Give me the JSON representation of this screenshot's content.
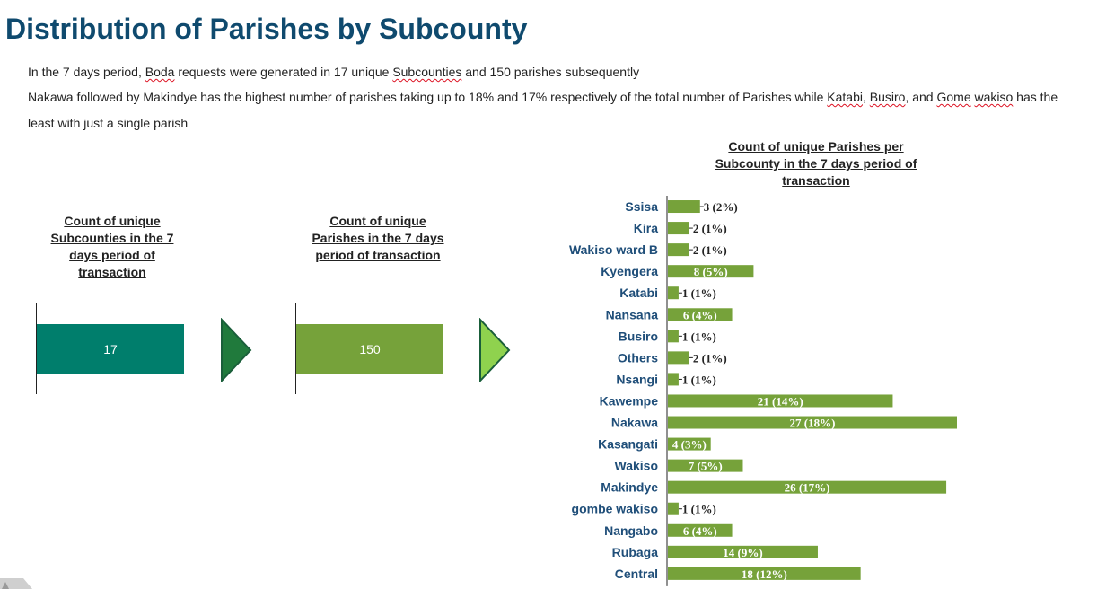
{
  "page": {
    "title": "Distribution of Parishes by Subcounty",
    "line1_prefix": "In the 7 days period,  ",
    "line1_boda": "Boda",
    "line1_mid": " requests were generated in 17 unique ",
    "line1_sub": "Subcounties",
    "line1_suffix": " and 150 parishes subsequently",
    "line2_a": "Nakawa followed by Makindye has the highest number of parishes taking up to 18% and 17% respectively of the total number of Parishes while ",
    "line2_katabi": "Katabi",
    "line2_sep1": ", ",
    "line2_busiro": "Busiro",
    "line2_sep2": ", and ",
    "line2_gome": "Gome",
    "line2_sp": " ",
    "line2_wakiso": "wakiso",
    "line2_b": " has the",
    "line3": "least with just a single parish"
  },
  "stats": {
    "subcounties": {
      "label_lines": [
        "Count of unique",
        "Subcounties in the 7",
        "days period of",
        "transaction"
      ],
      "value": "17",
      "color": "#007e6c"
    },
    "parishes": {
      "label_lines": [
        "Count of unique",
        "Parishes in the 7 days",
        "period of transaction"
      ],
      "value": "150",
      "color": "#76a23a"
    },
    "arrow1_color": "#207a3c",
    "arrow2_color": "#8fd24e",
    "arrow_stroke": "#1a5e3a"
  },
  "chart_data": {
    "type": "bar",
    "orientation": "horizontal",
    "title_lines": [
      "Count of unique Parishes per",
      "Subcounty in the 7 days period of",
      "transaction"
    ],
    "categories": [
      "Ssisa",
      "Kira",
      "Wakiso ward B",
      "Kyengera",
      "Katabi",
      "Nansana",
      "Busiro",
      "Others",
      "Nsangi",
      "Kawempe",
      "Nakawa",
      "Kasangati",
      "Wakiso",
      "Makindye",
      "gombe wakiso",
      "Nangabo",
      "Rubaga",
      "Central"
    ],
    "values": [
      3,
      2,
      2,
      8,
      1,
      6,
      1,
      2,
      1,
      21,
      27,
      4,
      7,
      26,
      1,
      6,
      14,
      18
    ],
    "labels": [
      "3 (2%)",
      "2 (1%)",
      "2 (1%)",
      "8 (5%)",
      "1 (1%)",
      "6 (4%)",
      "1 (1%)",
      "2 (1%)",
      "1 (1%)",
      "21 (14%)",
      "27 (18%)",
      "4 (3%)",
      "7 (5%)",
      "26 (17%)",
      "1 (1%)",
      "6 (4%)",
      "14 (9%)",
      "18 (12%)"
    ],
    "bar_color": "#76a23a",
    "category_color": "#1f4e79",
    "xlim": [
      0,
      27
    ]
  }
}
